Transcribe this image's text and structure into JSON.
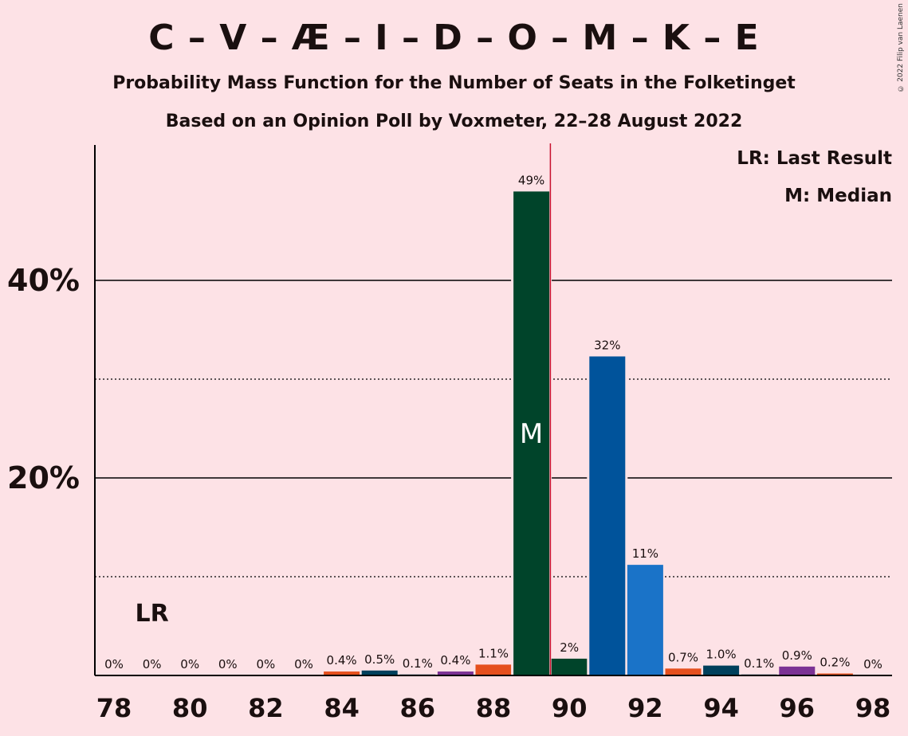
{
  "title": "C – V – Æ – I – D – O – M – K – E",
  "subtitle": "Probability Mass Function for the Number of Seats in the Folketinget",
  "subtitle2": "Based on an Opinion Poll by Voxmeter, 22–28 August 2022",
  "copyright": "© 2022 Filip van Laenen",
  "legend": {
    "last_result": "LR: Last Result",
    "median": "M: Median"
  },
  "chart_data": {
    "type": "bar",
    "x": [
      78,
      79,
      80,
      81,
      82,
      83,
      84,
      85,
      86,
      87,
      88,
      89,
      90,
      91,
      92,
      93,
      94,
      95,
      96,
      97,
      98
    ],
    "values": [
      0,
      0,
      0,
      0,
      0,
      0,
      0.4,
      0.5,
      0.1,
      0.4,
      1.1,
      49,
      1.7,
      32.3,
      11.2,
      0.7,
      1.0,
      0.1,
      0.9,
      0.2,
      0
    ],
    "labels": [
      "0%",
      "0%",
      "0%",
      "0%",
      "0%",
      "0%",
      "0.4%",
      "0.5%",
      "0.1%",
      "0.4%",
      "1.1%",
      "49%",
      "2%",
      "32%",
      "11%",
      "0.7%",
      "1.0%",
      "0.1%",
      "0.9%",
      "0.2%",
      "0%"
    ],
    "colors": [
      "#E5501E",
      "#00405C",
      "#00405C",
      "#7B3294",
      "#7B3294",
      "#E5501E",
      "#E5501E",
      "#00405C",
      "#00405C",
      "#7B3294",
      "#E5501E",
      "#00442A",
      "#00442A",
      "#00539B",
      "#1A73C8",
      "#E5501E",
      "#00405C",
      "#00405C",
      "#7B3294",
      "#E5501E",
      "#E5501E"
    ],
    "x_ticks": [
      "78",
      "80",
      "82",
      "84",
      "86",
      "88",
      "90",
      "92",
      "94",
      "96",
      "98"
    ],
    "y_ticks": [
      "20%",
      "40%"
    ],
    "ylim": [
      0,
      53
    ],
    "median_seat": 89,
    "median_label": "M",
    "last_result_seat": 79,
    "last_result_label": "LR",
    "majority_line": 89.5,
    "gridlines_solid": [
      20,
      40
    ],
    "gridlines_dotted": [
      10,
      30
    ]
  }
}
